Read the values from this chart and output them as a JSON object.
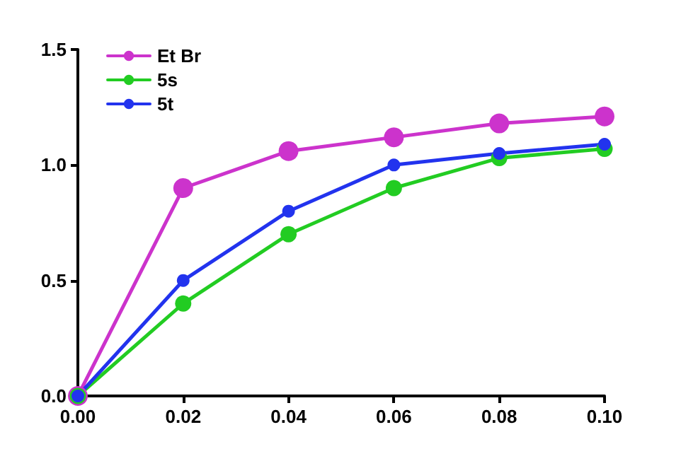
{
  "chart_data": {
    "type": "line",
    "x": [
      0,
      0.02,
      0.04,
      0.06,
      0.08,
      0.1
    ],
    "series": [
      {
        "name": "Et Br",
        "color": "#cc33cc",
        "values": [
          0,
          0.9,
          1.06,
          1.12,
          1.18,
          1.21
        ]
      },
      {
        "name": "5s",
        "color": "#22cc22",
        "values": [
          0,
          0.4,
          0.7,
          0.9,
          1.03,
          1.07
        ]
      },
      {
        "name": "5t",
        "color": "#2233ee",
        "values": [
          0,
          0.5,
          0.8,
          1.0,
          1.05,
          1.09
        ]
      }
    ],
    "xlim": [
      0,
      0.1
    ],
    "xticks": [
      {
        "value": 0,
        "label": "0.00"
      },
      {
        "value": 0.02,
        "label": "0.02"
      },
      {
        "value": 0.04,
        "label": "0.04"
      },
      {
        "value": 0.06,
        "label": "0.06"
      },
      {
        "value": 0.08,
        "label": "0.08"
      },
      {
        "value": 0.1,
        "label": "0.10"
      }
    ],
    "ylim": [
      0,
      1.5
    ],
    "yticks": [
      {
        "value": 0,
        "label": "0.0"
      },
      {
        "value": 0.5,
        "label": "0.5"
      },
      {
        "value": 1,
        "label": "1.0"
      },
      {
        "value": 1.5,
        "label": "1.5"
      }
    ],
    "legend": "top left",
    "marker": "circle",
    "line_style": "solid",
    "grid": false
  }
}
